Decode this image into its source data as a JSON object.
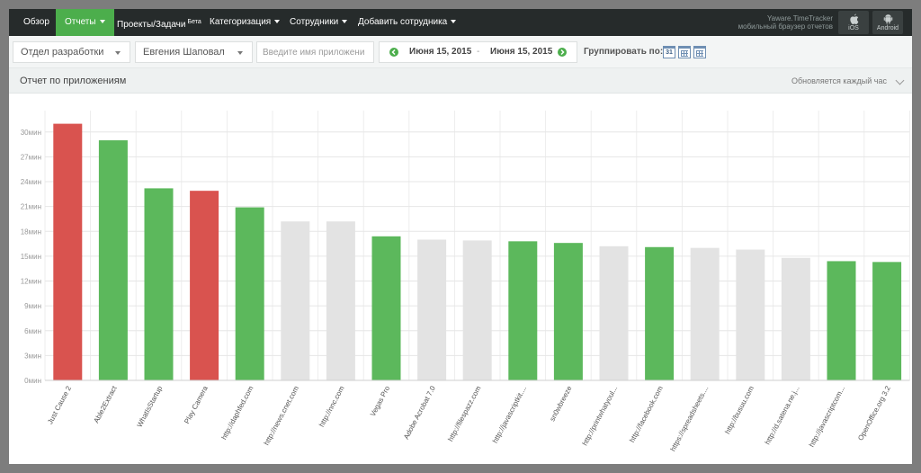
{
  "nav": {
    "items": [
      {
        "label": "Обзор",
        "active": false,
        "caret": false
      },
      {
        "label": "Отчеты",
        "active": true,
        "caret": true
      },
      {
        "label": "Проекты/Задачи",
        "sup": "Бета",
        "active": false,
        "caret": false
      },
      {
        "label": "Категоризация",
        "active": false,
        "caret": true
      },
      {
        "label": "Сотрудники",
        "active": false,
        "caret": true
      },
      {
        "label": "Добавить сотрудника",
        "active": false,
        "caret": true
      }
    ],
    "brand_line1": "Yaware.TimeTracker",
    "brand_line2": "мобильный браузер отчетов",
    "ios_label": "iOS",
    "android_label": "Android"
  },
  "filters": {
    "department": "Отдел разработки",
    "employee": "Евгения Шаповал",
    "app_search_placeholder": "Введите имя приложени",
    "date_from": "Июня 15, 2015",
    "date_sep": "-",
    "date_to": "Июня 15, 2015",
    "group_by_label": "Группировать по:",
    "day_number": "31"
  },
  "report": {
    "title": "Отчет по приложениям",
    "refresh_label": "Обновляется каждый час"
  },
  "colors": {
    "productive": "#5cb85c",
    "distracting": "#d9534f",
    "neutral": "#e3e3e3",
    "nav_bg": "#262b2b",
    "accent": "#4cae4c"
  },
  "chart_data": {
    "type": "bar",
    "categories": [
      "Just Cause 2",
      "Able2Extract",
      "WhatIsStartup",
      "Play Camera",
      "http://daphfed.com",
      "http://news.cnet.com",
      "http://nnc.com",
      "Vegas Pro",
      "Adobe Acrobat 7.0",
      "http://filespazz.com",
      "http://javascriptkit....",
      "sn0wbreeze",
      "http://printwhatyoul...",
      "http://facebook.com",
      "https://spreadsheets....",
      "http://busuu.com",
      "http://d.satena.ne.j...",
      "http://javascriptcom...",
      "OpenOffice.org 3.2"
    ],
    "values": [
      31.0,
      29.0,
      23.2,
      22.9,
      20.9,
      19.2,
      19.2,
      17.4,
      17.0,
      16.9,
      16.8,
      16.6,
      16.2,
      16.1,
      16.0,
      15.8,
      14.8,
      14.4,
      14.3
    ],
    "categories_status": [
      "distracting",
      "productive",
      "productive",
      "distracting",
      "productive",
      "neutral",
      "neutral",
      "productive",
      "neutral",
      "neutral",
      "productive",
      "productive",
      "neutral",
      "productive",
      "neutral",
      "neutral",
      "neutral",
      "productive",
      "productive"
    ],
    "yticks": [
      0,
      3,
      6,
      9,
      12,
      15,
      18,
      21,
      24,
      27,
      30
    ],
    "ytick_labels": [
      "0мин",
      "3мин",
      "6мин",
      "9мин",
      "12мин",
      "15мин",
      "18мин",
      "21мин",
      "24мин",
      "27мин",
      "30мин"
    ],
    "ylim": [
      0,
      31.5
    ],
    "xlabel": "",
    "ylabel": "",
    "grid": true,
    "legend": "none"
  }
}
